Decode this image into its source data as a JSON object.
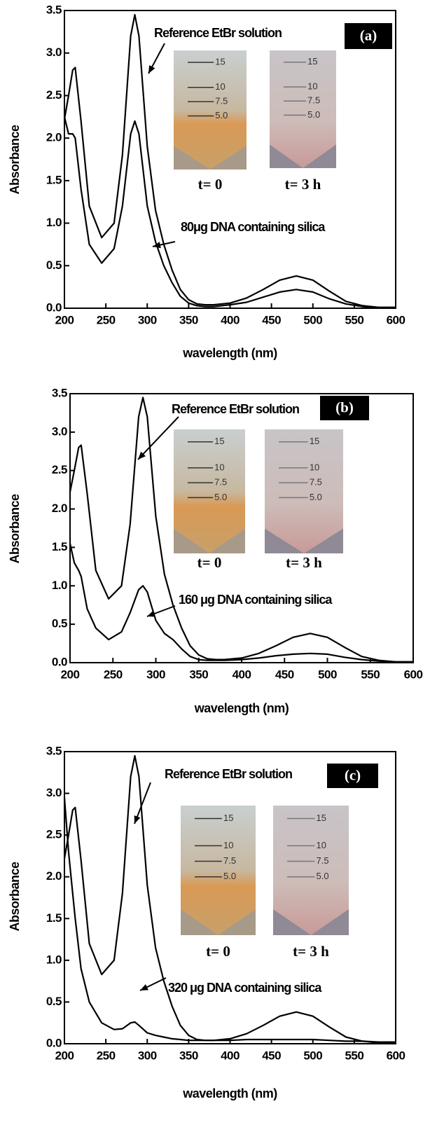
{
  "chart_data": [
    {
      "type": "line",
      "panel_label": "(a)",
      "xlabel": "wavelength (nm)",
      "ylabel": "Absorbance",
      "x": [
        200,
        205,
        210,
        213,
        220,
        230,
        245,
        260,
        270,
        280,
        285,
        290,
        300,
        310,
        320,
        330,
        340,
        350,
        360,
        370,
        380,
        400,
        420,
        440,
        460,
        480,
        500,
        520,
        540,
        560,
        580,
        600
      ],
      "series": [
        {
          "name": "Reference EtBr solution",
          "color": "#000000",
          "values": [
            2.22,
            2.5,
            2.8,
            2.83,
            2.2,
            1.2,
            0.83,
            1.0,
            1.8,
            3.2,
            3.45,
            3.2,
            1.9,
            1.15,
            0.75,
            0.45,
            0.22,
            0.1,
            0.05,
            0.04,
            0.04,
            0.06,
            0.12,
            0.22,
            0.33,
            0.38,
            0.33,
            0.2,
            0.08,
            0.03,
            0.01,
            0.01
          ]
        },
        {
          "name": "80μg DNA containing silica",
          "color": "#000000",
          "values": [
            2.25,
            2.05,
            2.05,
            2.0,
            1.4,
            0.75,
            0.53,
            0.7,
            1.2,
            2.05,
            2.2,
            2.05,
            1.2,
            0.78,
            0.5,
            0.3,
            0.14,
            0.06,
            0.03,
            0.02,
            0.02,
            0.04,
            0.07,
            0.13,
            0.19,
            0.22,
            0.19,
            0.11,
            0.05,
            0.02,
            0.01,
            0.01
          ]
        }
      ],
      "xlim": [
        200,
        600
      ],
      "xticks": [
        200,
        250,
        300,
        350,
        400,
        450,
        500,
        550,
        600
      ],
      "ylim": [
        0,
        3.5
      ],
      "yticks": [
        {
          "value": 0,
          "label": "0.0"
        },
        0.5,
        {
          "value": 1,
          "label": "1.0"
        },
        1.5,
        {
          "value": 2,
          "label": "2.0"
        },
        2.5,
        {
          "value": 3,
          "label": "3.0"
        },
        3.5
      ],
      "inset": {
        "tube_marks": [
          "15",
          "10",
          "7.5",
          "5.0"
        ],
        "labels": [
          "t= 0",
          "t= 3 h"
        ]
      }
    },
    {
      "type": "line",
      "panel_label": "(b)",
      "xlabel": "wavelength (nm)",
      "ylabel": "Absorbance",
      "x": [
        200,
        205,
        210,
        213,
        220,
        230,
        245,
        260,
        270,
        280,
        285,
        290,
        300,
        310,
        320,
        330,
        340,
        350,
        360,
        370,
        380,
        400,
        420,
        440,
        460,
        480,
        500,
        520,
        540,
        560,
        580,
        600
      ],
      "series": [
        {
          "name": "Reference EtBr solution",
          "color": "#000000",
          "values": [
            2.22,
            2.5,
            2.8,
            2.83,
            2.2,
            1.2,
            0.83,
            1.0,
            1.8,
            3.2,
            3.45,
            3.2,
            1.9,
            1.15,
            0.75,
            0.45,
            0.22,
            0.1,
            0.05,
            0.04,
            0.04,
            0.06,
            0.12,
            0.22,
            0.33,
            0.38,
            0.33,
            0.2,
            0.08,
            0.03,
            0.01,
            0.01
          ]
        },
        {
          "name": "160 μg DNA containing silica",
          "color": "#000000",
          "values": [
            1.55,
            1.3,
            1.2,
            1.12,
            0.7,
            0.45,
            0.3,
            0.4,
            0.65,
            0.95,
            1.0,
            0.92,
            0.55,
            0.38,
            0.3,
            0.18,
            0.08,
            0.04,
            0.03,
            0.03,
            0.03,
            0.04,
            0.06,
            0.09,
            0.11,
            0.12,
            0.11,
            0.07,
            0.04,
            0.02,
            0.01,
            0.01
          ]
        }
      ],
      "xlim": [
        200,
        600
      ],
      "xticks": [
        200,
        250,
        300,
        350,
        400,
        450,
        500,
        550,
        600
      ],
      "ylim": [
        0,
        3.5
      ],
      "yticks": [
        {
          "value": 0,
          "label": "0.0"
        },
        0.5,
        {
          "value": 1,
          "label": "1.0"
        },
        1.5,
        {
          "value": 2,
          "label": "2.0"
        },
        2.5,
        {
          "value": 3,
          "label": "3.0"
        },
        3.5
      ],
      "inset": {
        "tube_marks": [
          "15",
          "10",
          "7.5",
          "5.0"
        ],
        "labels": [
          "t= 0",
          "t= 3 h"
        ]
      }
    },
    {
      "type": "line",
      "panel_label": "(c)",
      "xlabel": "wavelength (nm)",
      "ylabel": "Absorbance",
      "x": [
        200,
        205,
        210,
        213,
        220,
        230,
        245,
        260,
        270,
        280,
        285,
        290,
        300,
        310,
        320,
        330,
        340,
        350,
        360,
        370,
        380,
        400,
        420,
        440,
        460,
        480,
        500,
        520,
        540,
        560,
        580,
        600
      ],
      "series": [
        {
          "name": "Reference EtBr solution",
          "color": "#000000",
          "values": [
            2.22,
            2.5,
            2.8,
            2.83,
            2.2,
            1.2,
            0.83,
            1.0,
            1.8,
            3.2,
            3.45,
            3.2,
            1.9,
            1.15,
            0.75,
            0.45,
            0.22,
            0.1,
            0.05,
            0.04,
            0.04,
            0.06,
            0.12,
            0.22,
            0.33,
            0.38,
            0.33,
            0.2,
            0.08,
            0.03,
            0.01,
            0.01
          ]
        },
        {
          "name": "320 μg DNA containing silica",
          "color": "#000000",
          "values": [
            2.95,
            2.3,
            1.8,
            1.5,
            0.9,
            0.5,
            0.25,
            0.17,
            0.18,
            0.25,
            0.26,
            0.22,
            0.13,
            0.1,
            0.08,
            0.06,
            0.05,
            0.04,
            0.04,
            0.04,
            0.04,
            0.04,
            0.05,
            0.05,
            0.05,
            0.05,
            0.05,
            0.04,
            0.03,
            0.03,
            0.02,
            0.02
          ]
        }
      ],
      "xlim": [
        200,
        600
      ],
      "xticks": [
        200,
        250,
        300,
        350,
        400,
        450,
        500,
        550,
        600
      ],
      "ylim": [
        0,
        3.5
      ],
      "yticks": [
        {
          "value": 0,
          "label": "0.0"
        },
        0.5,
        {
          "value": 1,
          "label": "1.0"
        },
        1.5,
        {
          "value": 2,
          "label": "2.0"
        },
        2.5,
        {
          "value": 3,
          "label": "3.0"
        },
        3.5
      ],
      "inset": {
        "tube_marks": [
          "15",
          "10",
          "7.5",
          "5.0"
        ],
        "labels": [
          "t= 0",
          "t= 3 h"
        ]
      }
    }
  ]
}
